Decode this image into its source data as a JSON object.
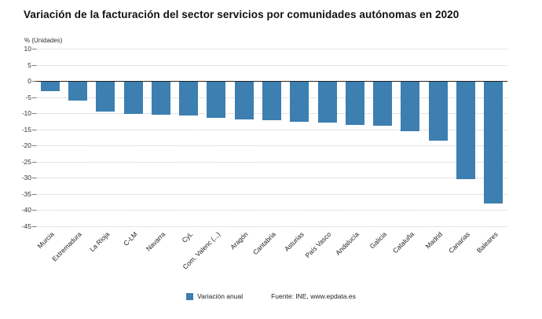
{
  "title": "Variación de la facturación del sector servicios por comunidades autónomas en 2020",
  "axis_unit_label": "% (Unidades)",
  "legend": {
    "label": "Variación anual"
  },
  "source": "Fuente: INE, www.epdata.es",
  "colors": {
    "bar": "#3c7fb0",
    "grid": "#c9c9c9",
    "zero_line": "#222222",
    "background": "#ffffff",
    "title_text": "#111111"
  },
  "chart_data": {
    "type": "bar",
    "title": "Variación de la facturación del sector servicios por comunidades autónomas en 2020",
    "xlabel": "",
    "ylabel": "% (Unidades)",
    "legend": [
      "Variación anual"
    ],
    "legend_position": "bottom",
    "grid": true,
    "ylim": [
      -45,
      10
    ],
    "yticks": [
      10,
      5,
      0,
      -5,
      -10,
      -15,
      -20,
      -25,
      -30,
      -35,
      -40,
      -45
    ],
    "categories": [
      "Murcia",
      "Extremadura",
      "La Rioja",
      "C-LM",
      "Navarra",
      "CyL",
      "Com. Valenc (...)",
      "Aragón",
      "Cantabria",
      "Asturias",
      "País Vasco",
      "Andalucía",
      "Galicia",
      "Cataluña",
      "Madrid",
      "Canarias",
      "Baleares"
    ],
    "values": [
      -3.1,
      -6.1,
      -9.5,
      -10.2,
      -10.5,
      -10.7,
      -11.4,
      -12.0,
      -12.2,
      -12.6,
      -12.8,
      -13.6,
      -13.8,
      -15.6,
      -18.5,
      -30.4,
      -38.0
    ]
  }
}
